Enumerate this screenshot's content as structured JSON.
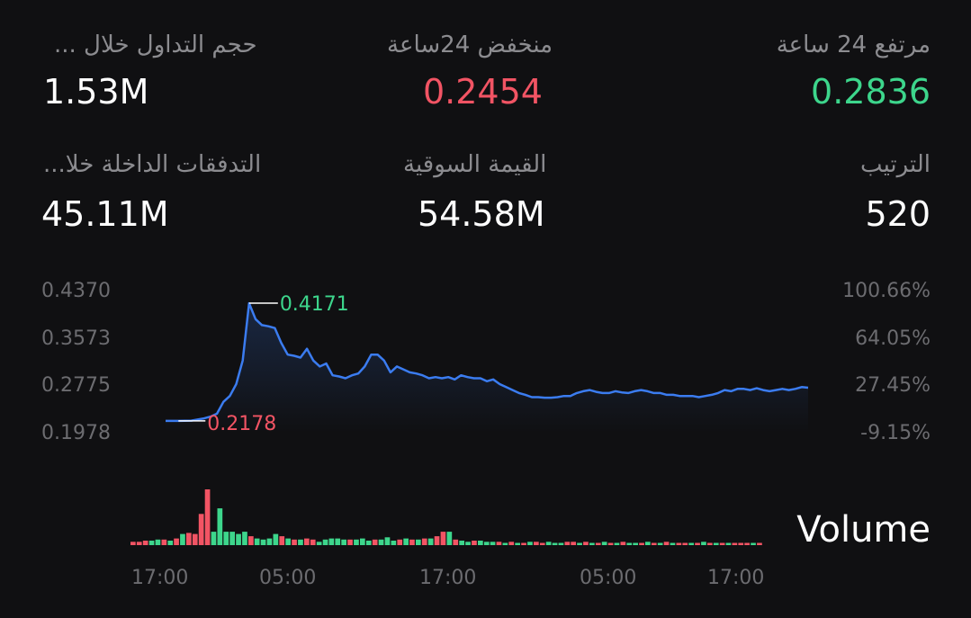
{
  "stats": {
    "high24_label": "مرتفع 24 ساعة",
    "high24_value": "0.2836",
    "low24_label": "منخفض 24ساعة",
    "low24_value": "0.2454",
    "volume_label": "حجم التداول خلال ...",
    "volume_value": "1.53M",
    "rank_label": "الترتيب",
    "rank_value": "520",
    "marketcap_label": "القيمة السوقية",
    "marketcap_value": "54.58M",
    "inflow_label": "التدفقات الداخلة خلا...",
    "inflow_value": "45.11M"
  },
  "colors": {
    "up": "#3dd68c",
    "down": "#f25464",
    "line": "#3b7cf0",
    "axis": "#6c6c70"
  },
  "chart_data": [
    {
      "type": "line",
      "y_ticks_left": [
        "0.4370",
        "0.3573",
        "0.2775",
        "0.1978"
      ],
      "y_ticks_right": [
        "100.66%",
        "64.05%",
        "27.45%",
        "-9.15%"
      ],
      "ylim": [
        0.1978,
        0.437
      ],
      "max_label": "0.4171",
      "min_label": "0.2178",
      "series": [
        {
          "values": [
            0.2178,
            0.2178,
            0.2178,
            0.218,
            0.2182,
            0.22,
            0.222,
            0.225,
            0.23,
            0.25,
            0.26,
            0.28,
            0.32,
            0.4171,
            0.39,
            0.38,
            0.378,
            0.375,
            0.35,
            0.33,
            0.328,
            0.325,
            0.34,
            0.32,
            0.31,
            0.315,
            0.295,
            0.293,
            0.29,
            0.295,
            0.298,
            0.31,
            0.33,
            0.33,
            0.32,
            0.3,
            0.31,
            0.305,
            0.3,
            0.298,
            0.295,
            0.29,
            0.292,
            0.29,
            0.292,
            0.288,
            0.295,
            0.292,
            0.29,
            0.29,
            0.285,
            0.288,
            0.28,
            0.275,
            0.27,
            0.265,
            0.262,
            0.258,
            0.258,
            0.257,
            0.257,
            0.258,
            0.26,
            0.26,
            0.265,
            0.268,
            0.27,
            0.267,
            0.265,
            0.265,
            0.268,
            0.266,
            0.265,
            0.268,
            0.27,
            0.268,
            0.265,
            0.265,
            0.262,
            0.262,
            0.26,
            0.26,
            0.26,
            0.258,
            0.26,
            0.262,
            0.265,
            0.27,
            0.268,
            0.272,
            0.272,
            0.27,
            0.273,
            0.27,
            0.268,
            0.27,
            0.272,
            0.27,
            0.272,
            0.275,
            0.274
          ]
        }
      ]
    },
    {
      "type": "bar",
      "title": "Volume",
      "x_ticks": [
        "17:00",
        "05:00",
        "17:00",
        "05:00",
        "17:00"
      ],
      "values": [
        3,
        3,
        4,
        4,
        5,
        5,
        4,
        6,
        10,
        11,
        10,
        28,
        50,
        12,
        33,
        12,
        12,
        10,
        12,
        8,
        6,
        5,
        6,
        10,
        8,
        6,
        5,
        5,
        6,
        5,
        3,
        5,
        6,
        6,
        5,
        5,
        5,
        6,
        4,
        5,
        5,
        7,
        4,
        5,
        6,
        5,
        5,
        6,
        6,
        8,
        12,
        12,
        5,
        4,
        3,
        4,
        4,
        3,
        3,
        3,
        2,
        3,
        2,
        2,
        3,
        3,
        2,
        3,
        2,
        2,
        3,
        3,
        2,
        3,
        2,
        2,
        3,
        2,
        2,
        3,
        2,
        2,
        2,
        3,
        2,
        2,
        3,
        2,
        2,
        2,
        2,
        2,
        3,
        2,
        2,
        2,
        2,
        2,
        2,
        2,
        2,
        2
      ],
      "up_down": [
        "d",
        "d",
        "d",
        "u",
        "u",
        "d",
        "u",
        "d",
        "u",
        "d",
        "d",
        "d",
        "d",
        "u",
        "u",
        "u",
        "u",
        "u",
        "u",
        "d",
        "u",
        "u",
        "u",
        "u",
        "d",
        "u",
        "d",
        "u",
        "d",
        "d",
        "u",
        "u",
        "u",
        "u",
        "u",
        "d",
        "u",
        "u",
        "u",
        "d",
        "u",
        "u",
        "u",
        "d",
        "u",
        "d",
        "u",
        "d",
        "u",
        "d",
        "d",
        "u",
        "d",
        "u",
        "u",
        "d",
        "u",
        "u",
        "u",
        "d",
        "u",
        "d",
        "u",
        "d",
        "u",
        "d",
        "d",
        "u",
        "u",
        "u",
        "d",
        "d",
        "u",
        "d",
        "u",
        "d",
        "u",
        "d",
        "u",
        "d",
        "u",
        "u",
        "d",
        "u",
        "d",
        "u",
        "d",
        "u",
        "d",
        "d",
        "u",
        "d",
        "u",
        "d",
        "u",
        "d",
        "u",
        "d",
        "d",
        "d",
        "u",
        "d"
      ]
    }
  ],
  "volume_title": "Volume"
}
